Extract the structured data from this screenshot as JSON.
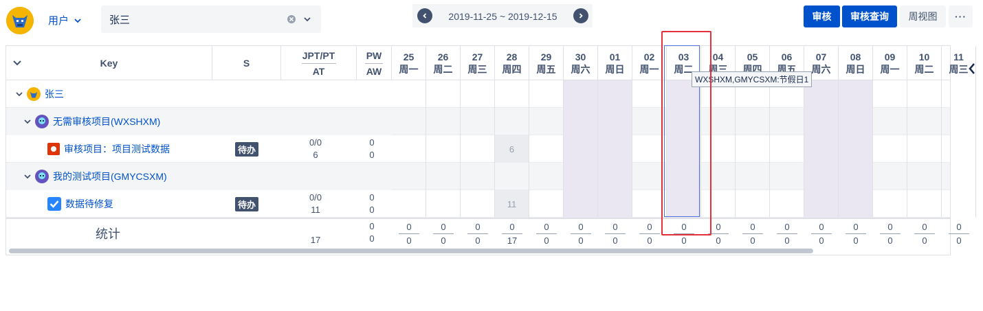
{
  "header": {
    "user_label": "用户",
    "user_value": "张三",
    "date_range": "2019-11-25 ~ 2019-12-15",
    "buttons": {
      "audit": "审核",
      "audit_query": "审核查询",
      "week_view": "周视图",
      "more": "···"
    }
  },
  "columns": {
    "key": "Key",
    "s": "S",
    "jpt_top": "JPT/PT",
    "jpt_bottom": "AT",
    "pw_top": "PW",
    "pw_bottom": "AW"
  },
  "days": [
    {
      "d": "25",
      "w": "周一",
      "type": "work"
    },
    {
      "d": "26",
      "w": "周二",
      "type": "work"
    },
    {
      "d": "27",
      "w": "周三",
      "type": "work"
    },
    {
      "d": "28",
      "w": "周四",
      "type": "work"
    },
    {
      "d": "29",
      "w": "周五",
      "type": "work"
    },
    {
      "d": "30",
      "w": "周六",
      "type": "weekend"
    },
    {
      "d": "01",
      "w": "周日",
      "type": "weekend"
    },
    {
      "d": "02",
      "w": "周一",
      "type": "work"
    },
    {
      "d": "03",
      "w": "周二",
      "type": "holiday"
    },
    {
      "d": "04",
      "w": "周三",
      "type": "work"
    },
    {
      "d": "05",
      "w": "周四",
      "type": "work"
    },
    {
      "d": "06",
      "w": "周五",
      "type": "work"
    },
    {
      "d": "07",
      "w": "周六",
      "type": "weekend"
    },
    {
      "d": "08",
      "w": "周日",
      "type": "weekend"
    },
    {
      "d": "09",
      "w": "周一",
      "type": "work"
    },
    {
      "d": "10",
      "w": "周二",
      "type": "work"
    },
    {
      "d": "11",
      "w": "周三",
      "type": "work"
    }
  ],
  "rows": {
    "user": {
      "label": "张三"
    },
    "project1": {
      "label": "无需审核项目(WXSHXM)"
    },
    "task1": {
      "label": "审核项目：项目测试数据",
      "status": "待办",
      "jpt": "0/0",
      "at": "6",
      "pw": "0",
      "aw": "0",
      "logged_day": 3,
      "logged_value": "6"
    },
    "project2": {
      "label": "我的测试项目(GMYCSXM)"
    },
    "task2": {
      "label": "数据待修复",
      "status": "待办",
      "jpt": "0/0",
      "at": "11",
      "pw": "0",
      "aw": "0",
      "logged_day": 3,
      "logged_value": "11"
    }
  },
  "stats": {
    "label": "统计",
    "at_total": "17",
    "pw_top": "0",
    "aw_total": "0",
    "days_top": [
      "0",
      "0",
      "0",
      "0",
      "0",
      "0",
      "0",
      "0",
      "0",
      "0",
      "0",
      "0",
      "0",
      "0",
      "0",
      "0",
      "0"
    ],
    "days_bottom": [
      "0",
      "0",
      "0",
      "17",
      "0",
      "0",
      "0",
      "0",
      "0",
      "0",
      "0",
      "0",
      "0",
      "0",
      "0",
      "0",
      "0"
    ]
  },
  "tooltip": "WXSHXM,GMYCSXM:节假日1",
  "colors": {
    "accent": "#0052cc",
    "weekend": "#eae6f2",
    "highlight": "#e5303a"
  }
}
